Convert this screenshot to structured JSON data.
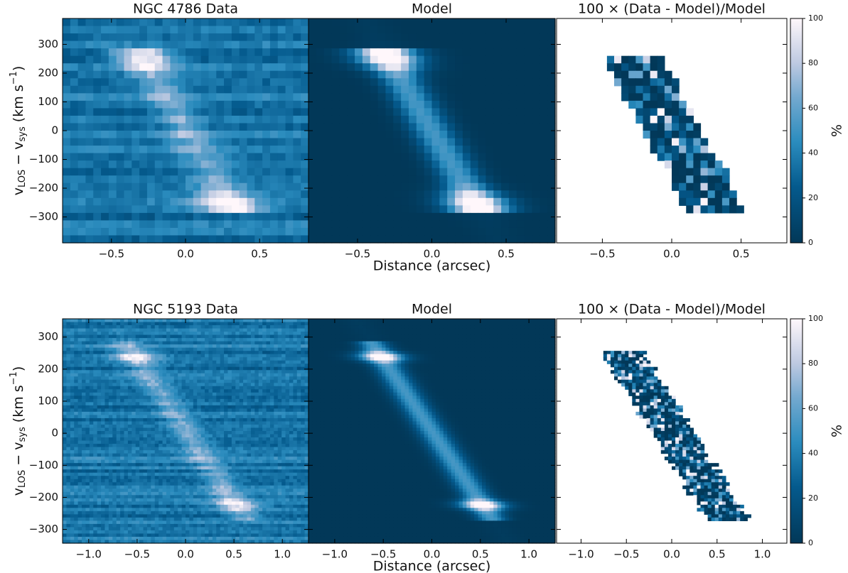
{
  "chart_data": [
    {
      "type": "heatmap",
      "title": "NGC 4786 Data",
      "ylabel": [
        "v",
        "LOS",
        " − v",
        "sys",
        " (km s",
        "−1",
        ")"
      ],
      "xlim": [
        -0.83,
        0.83
      ],
      "xticks": [
        {
          "value": -0.5,
          "label": "−0.5"
        },
        {
          "value": 0,
          "label": "0.0"
        },
        0.5
      ],
      "ylim": [
        -390,
        390
      ],
      "yticks": [
        {
          "value": -300,
          "label": "−300"
        },
        {
          "value": -200,
          "label": "−200"
        },
        {
          "value": -100,
          "label": "−100"
        },
        0,
        100,
        200,
        300
      ]
    },
    {
      "type": "heatmap",
      "title": "Model",
      "xlabel": "Distance (arcsec)",
      "xlim": [
        -0.83,
        0.83
      ],
      "xticks": [
        {
          "value": -0.5,
          "label": "−0.5"
        },
        {
          "value": 0,
          "label": "0.0"
        },
        0.5
      ],
      "ylim": [
        -390,
        390
      ]
    },
    {
      "type": "heatmap",
      "title": "100 × (Data - Model)/Model",
      "xlim": [
        -0.83,
        0.83
      ],
      "xticks": [
        {
          "value": -0.5,
          "label": "−0.5"
        },
        {
          "value": 0,
          "label": "0.0"
        },
        0.5
      ],
      "ylim": [
        -390,
        390
      ],
      "colorbar": {
        "lim": [
          0,
          100
        ],
        "ticks": [
          0,
          20,
          40,
          60,
          80,
          100
        ],
        "label": "%"
      }
    },
    {
      "type": "heatmap",
      "title": "NGC 5193 Data",
      "ylabel": [
        "v",
        "LOS",
        " − v",
        "sys",
        " (km s",
        "−1",
        ")"
      ],
      "xlim": [
        -1.27,
        1.27
      ],
      "xticks": [
        {
          "value": -1,
          "label": "−1.0"
        },
        {
          "value": -0.5,
          "label": "−0.5"
        },
        {
          "value": 0,
          "label": "0.0"
        },
        0.5,
        {
          "value": 1,
          "label": "1.0"
        }
      ],
      "ylim": [
        -343,
        357
      ],
      "yticks": [
        {
          "value": -300,
          "label": "−300"
        },
        {
          "value": -200,
          "label": "−200"
        },
        {
          "value": -100,
          "label": "−100"
        },
        0,
        100,
        200,
        300
      ]
    },
    {
      "type": "heatmap",
      "title": "Model",
      "xlabel": "Distance (arcsec)",
      "xlim": [
        -1.27,
        1.27
      ],
      "xticks": [
        {
          "value": -1,
          "label": "−1.0"
        },
        {
          "value": -0.5,
          "label": "−0.5"
        },
        {
          "value": 0,
          "label": "0.0"
        },
        0.5,
        {
          "value": 1,
          "label": "1.0"
        }
      ],
      "ylim": [
        -343,
        357
      ]
    },
    {
      "type": "heatmap",
      "title": "100 × (Data - Model)/Model",
      "xlim": [
        -1.27,
        1.27
      ],
      "xticks": [
        {
          "value": -1,
          "label": "−1.0"
        },
        {
          "value": -0.5,
          "label": "−0.5"
        },
        {
          "value": 0,
          "label": "0.0"
        },
        0.5,
        {
          "value": 1,
          "label": "1.0"
        }
      ],
      "ylim": [
        -343,
        357
      ],
      "colorbar": {
        "lim": [
          0,
          100
        ],
        "ticks": [
          0,
          20,
          40,
          60,
          80,
          100
        ],
        "label": "%"
      }
    }
  ]
}
